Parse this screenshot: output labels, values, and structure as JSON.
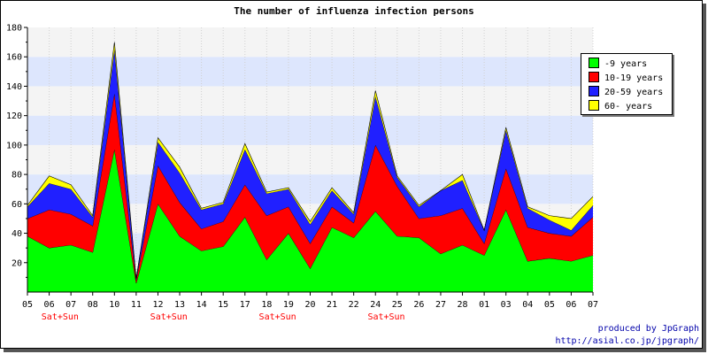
{
  "chart_data": {
    "type": "area",
    "stacked": true,
    "title": "The number of influenza infection persons",
    "categories": [
      "05",
      "06",
      "07",
      "08",
      "10",
      "11",
      "12",
      "13",
      "14",
      "15",
      "17",
      "18",
      "19",
      "20",
      "21",
      "22",
      "24",
      "25",
      "26",
      "27",
      "28",
      "01",
      "03",
      "04",
      "05",
      "06",
      "07"
    ],
    "weekend_markers": [
      {
        "category_index": 2,
        "label": "Sat+Sun"
      },
      {
        "category_index": 7,
        "label": "Sat+Sun"
      },
      {
        "category_index": 12,
        "label": "Sat+Sun"
      },
      {
        "category_index": 17,
        "label": "Sat+Sun"
      }
    ],
    "series": [
      {
        "name": "-9 years",
        "color": "#00ff00",
        "values": [
          38,
          30,
          32,
          27,
          97,
          6,
          60,
          38,
          28,
          31,
          51,
          22,
          40,
          16,
          44,
          37,
          55,
          38,
          37,
          26,
          32,
          25,
          56,
          21,
          23,
          21,
          25
        ]
      },
      {
        "name": "10-19 years",
        "color": "#ff0000",
        "values": [
          12,
          26,
          21,
          18,
          38,
          2,
          26,
          23,
          15,
          17,
          22,
          30,
          18,
          17,
          14,
          10,
          45,
          34,
          13,
          26,
          25,
          8,
          28,
          23,
          17,
          17,
          26
        ]
      },
      {
        "name": "20-59 years",
        "color": "#2020ff",
        "values": [
          8,
          18,
          17,
          6,
          30,
          1,
          16,
          20,
          13,
          12,
          24,
          15,
          12,
          13,
          11,
          6,
          33,
          6,
          8,
          17,
          19,
          9,
          26,
          13,
          9,
          4,
          8
        ]
      },
      {
        "name": "60- years",
        "color": "#ffff00",
        "values": [
          1,
          5,
          3,
          1,
          5,
          0,
          3,
          4,
          1,
          1,
          4,
          1,
          1,
          2,
          2,
          1,
          4,
          1,
          1,
          0,
          4,
          0,
          2,
          1,
          3,
          8,
          6
        ]
      }
    ],
    "ylim": [
      0,
      180
    ],
    "y_ticks": [
      20,
      40,
      60,
      80,
      100,
      120,
      140,
      160,
      180
    ],
    "legend_position": "top-right",
    "background_bands": {
      "light": "#f4f4f4",
      "blue": "#dde6fd"
    },
    "marker_color": "#ff0000"
  },
  "credit": {
    "line1": "produced by JpGraph",
    "line2": "http://asial.co.jp/jpgraph/"
  }
}
